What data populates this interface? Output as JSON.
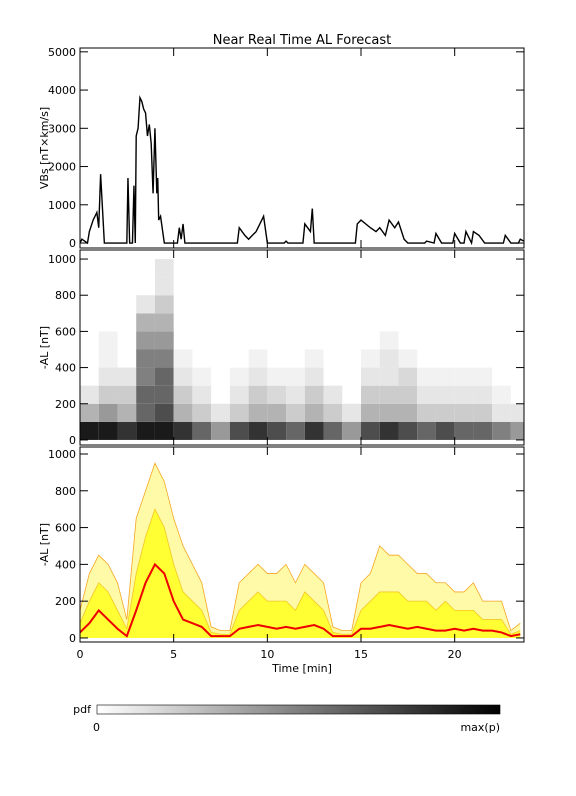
{
  "chart_data": [
    {
      "type": "line",
      "title": "Near Real Time AL Forecast",
      "y_label": "VBs [nT×km/s]",
      "color": "#000000",
      "x": [
        0,
        0.1,
        0.4,
        0.5,
        0.7,
        0.9,
        1.0,
        1.1,
        1.3,
        2.5,
        2.56,
        2.65,
        2.8,
        2.88,
        2.95,
        3.0,
        3.1,
        3.2,
        3.3,
        3.4,
        3.5,
        3.6,
        3.7,
        3.8,
        3.9,
        4.0,
        4.1,
        4.15,
        4.2,
        4.3,
        4.5,
        5.2,
        5.3,
        5.4,
        5.5,
        5.6,
        8.4,
        8.5,
        8.8,
        9.0,
        9.4,
        9.6,
        9.8,
        10.0,
        10.9,
        11.0,
        11.1,
        11.9,
        12.0,
        12.3,
        12.4,
        12.5,
        14.7,
        14.8,
        15.0,
        15.5,
        15.8,
        16.0,
        16.3,
        16.5,
        16.8,
        17.0,
        17.3,
        17.5,
        18.4,
        18.5,
        18.9,
        19.0,
        19.3,
        19.9,
        20.0,
        20.3,
        20.5,
        20.6,
        20.9,
        21.0,
        21.3,
        21.6,
        22.6,
        22.7,
        23.0,
        23.4,
        23.5,
        23.7
      ],
      "values": [
        0,
        100,
        0,
        300,
        600,
        800,
        400,
        1800,
        0,
        0,
        1700,
        0,
        0,
        1500,
        0,
        2800,
        3000,
        3800,
        3700,
        3500,
        3400,
        2800,
        3100,
        2600,
        1300,
        3000,
        1300,
        1700,
        600,
        700,
        0,
        0,
        400,
        100,
        500,
        0,
        0,
        400,
        200,
        100,
        300,
        500,
        700,
        0,
        0,
        50,
        0,
        0,
        500,
        300,
        900,
        0,
        0,
        500,
        600,
        400,
        300,
        400,
        200,
        600,
        400,
        550,
        100,
        0,
        0,
        50,
        0,
        250,
        0,
        0,
        250,
        0,
        0,
        300,
        0,
        300,
        200,
        0,
        0,
        200,
        0,
        0,
        100,
        50
      ],
      "xlim": [
        0,
        23.7
      ],
      "xticks": [
        0,
        5,
        10,
        15,
        20
      ],
      "ylim": [
        -130,
        5100
      ],
      "yticks": [
        0,
        1000,
        2000,
        3000,
        4000,
        5000
      ]
    },
    {
      "type": "heatmap",
      "y_label": "-AL [nT]",
      "x_bins": [
        0,
        1,
        2,
        3,
        4,
        5,
        6,
        7,
        8,
        9,
        10,
        11,
        12,
        13,
        14,
        15,
        16,
        17,
        18,
        19,
        20,
        21,
        22,
        23,
        24
      ],
      "y_bins": [
        0,
        100,
        200,
        300,
        400,
        500,
        600,
        700,
        800,
        900,
        1000
      ],
      "z": [
        [
          0.9,
          0.3,
          0.1,
          0,
          0,
          0,
          0,
          0,
          0,
          0
        ],
        [
          0.9,
          0.4,
          0.2,
          0.1,
          0.05,
          0.05,
          0,
          0,
          0,
          0
        ],
        [
          0.8,
          0.3,
          0.2,
          0.1,
          0,
          0,
          0,
          0,
          0,
          0
        ],
        [
          0.9,
          0.6,
          0.6,
          0.5,
          0.5,
          0.4,
          0.3,
          0.1,
          0,
          0
        ],
        [
          0.9,
          0.7,
          0.6,
          0.6,
          0.5,
          0.4,
          0.3,
          0.2,
          0.1,
          0.1
        ],
        [
          0.8,
          0.3,
          0.2,
          0.1,
          0.05,
          0,
          0,
          0,
          0,
          0
        ],
        [
          0.6,
          0.2,
          0.1,
          0.05,
          0,
          0,
          0,
          0,
          0,
          0
        ],
        [
          0.4,
          0.1,
          0,
          0,
          0,
          0,
          0,
          0,
          0,
          0
        ],
        [
          0.7,
          0.2,
          0.1,
          0.05,
          0,
          0,
          0,
          0,
          0,
          0
        ],
        [
          0.8,
          0.3,
          0.2,
          0.1,
          0.05,
          0,
          0,
          0,
          0,
          0
        ],
        [
          0.7,
          0.3,
          0.15,
          0.05,
          0,
          0,
          0,
          0,
          0,
          0
        ],
        [
          0.6,
          0.2,
          0.1,
          0.05,
          0,
          0,
          0,
          0,
          0,
          0
        ],
        [
          0.8,
          0.3,
          0.2,
          0.1,
          0.05,
          0,
          0,
          0,
          0,
          0
        ],
        [
          0.6,
          0.2,
          0.1,
          0,
          0,
          0,
          0,
          0,
          0,
          0
        ],
        [
          0.4,
          0.1,
          0,
          0,
          0,
          0,
          0,
          0,
          0,
          0
        ],
        [
          0.7,
          0.3,
          0.2,
          0.1,
          0.05,
          0,
          0,
          0,
          0,
          0
        ],
        [
          0.8,
          0.3,
          0.2,
          0.1,
          0.1,
          0.05,
          0,
          0,
          0,
          0
        ],
        [
          0.7,
          0.3,
          0.2,
          0.15,
          0.05,
          0,
          0,
          0,
          0,
          0
        ],
        [
          0.6,
          0.2,
          0.1,
          0.05,
          0,
          0,
          0,
          0,
          0,
          0
        ],
        [
          0.7,
          0.2,
          0.1,
          0.05,
          0,
          0,
          0,
          0,
          0,
          0
        ],
        [
          0.6,
          0.2,
          0.1,
          0.05,
          0,
          0,
          0,
          0,
          0,
          0
        ],
        [
          0.6,
          0.2,
          0.1,
          0.05,
          0,
          0,
          0,
          0,
          0,
          0
        ],
        [
          0.5,
          0.1,
          0.05,
          0,
          0,
          0,
          0,
          0,
          0,
          0
        ],
        [
          0.4,
          0.1,
          0,
          0,
          0,
          0,
          0,
          0,
          0,
          0
        ]
      ],
      "xlim": [
        0,
        23.7
      ],
      "xticks": [
        0,
        5,
        10,
        15,
        20
      ],
      "ylim": [
        -28,
        1050
      ],
      "yticks": [
        0,
        200,
        400,
        600,
        800,
        1000
      ],
      "colorbar": {
        "label": "pdf",
        "tick_labels": [
          "0",
          "max(p)"
        ],
        "colors": [
          "#ffffff",
          "#000000"
        ]
      }
    },
    {
      "type": "band",
      "y_label": "-AL [nT]",
      "x_label": "Time [min]",
      "x": [
        0,
        0.5,
        1,
        1.5,
        2,
        2.5,
        3,
        3.5,
        4,
        4.5,
        5,
        5.5,
        6,
        6.5,
        7,
        7.5,
        8,
        8.5,
        9,
        9.5,
        10,
        10.5,
        11,
        11.5,
        12,
        12.5,
        13,
        13.5,
        14,
        14.5,
        15,
        15.5,
        16,
        16.5,
        17,
        17.5,
        18,
        18.5,
        19,
        19.5,
        20,
        20.5,
        21,
        21.5,
        22,
        22.5,
        23,
        23.5
      ],
      "series": [
        {
          "kind": "area",
          "color": "#fffaa8",
          "line_color": "#f5a623",
          "values": [
            150,
            350,
            450,
            400,
            300,
            100,
            650,
            800,
            950,
            850,
            650,
            500,
            400,
            300,
            60,
            40,
            40,
            300,
            350,
            400,
            350,
            350,
            400,
            300,
            400,
            350,
            300,
            60,
            40,
            40,
            300,
            350,
            500,
            450,
            450,
            400,
            350,
            350,
            300,
            300,
            250,
            250,
            300,
            200,
            200,
            200,
            40,
            80
          ]
        },
        {
          "kind": "area",
          "color": "#ffff33",
          "line_color": "#f5c623",
          "values": [
            80,
            200,
            300,
            250,
            150,
            50,
            350,
            550,
            700,
            600,
            400,
            250,
            200,
            150,
            30,
            20,
            20,
            150,
            200,
            250,
            200,
            200,
            200,
            150,
            250,
            200,
            150,
            30,
            20,
            20,
            150,
            200,
            250,
            250,
            250,
            200,
            200,
            200,
            150,
            200,
            150,
            150,
            150,
            100,
            100,
            100,
            20,
            40
          ]
        },
        {
          "kind": "line",
          "color": "#ee0000",
          "values": [
            30,
            80,
            150,
            100,
            50,
            10,
            150,
            300,
            400,
            350,
            200,
            100,
            80,
            60,
            10,
            10,
            10,
            50,
            60,
            70,
            60,
            50,
            60,
            50,
            60,
            70,
            50,
            10,
            10,
            10,
            50,
            50,
            60,
            70,
            60,
            50,
            60,
            50,
            40,
            40,
            50,
            40,
            50,
            40,
            40,
            30,
            10,
            20
          ]
        }
      ],
      "xlim": [
        0,
        23.7
      ],
      "xticks": [
        0,
        5,
        10,
        15,
        20
      ],
      "ylim": [
        -22,
        1038
      ],
      "yticks": [
        0,
        200,
        400,
        600,
        800,
        1000
      ]
    }
  ]
}
